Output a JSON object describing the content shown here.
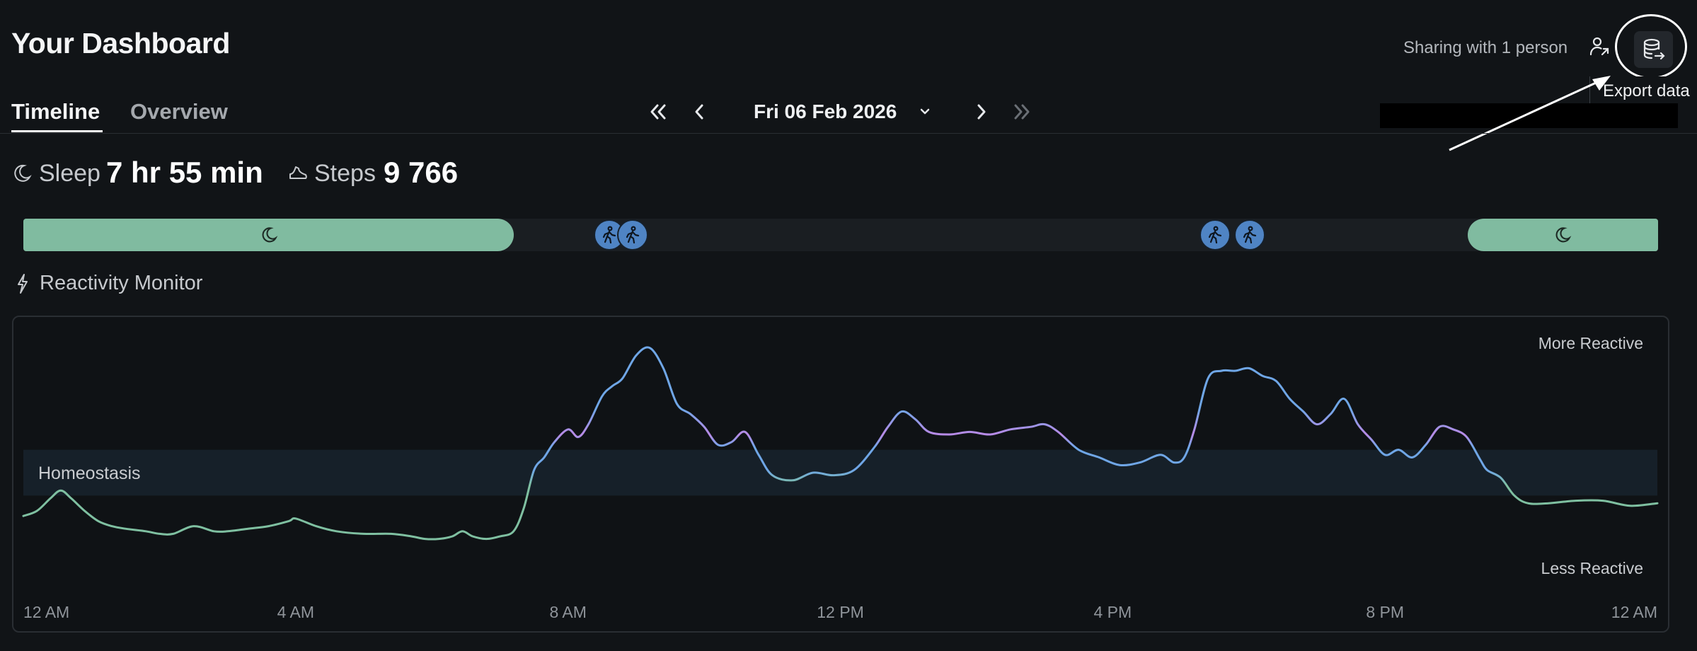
{
  "header": {
    "title": "Your Dashboard",
    "sharing_text": "Sharing with 1 person",
    "share_icon": "person-share-icon",
    "export_icon": "database-export-icon",
    "export_tooltip": "Export data"
  },
  "tabs": [
    {
      "label": "Timeline",
      "active": true
    },
    {
      "label": "Overview",
      "active": false
    }
  ],
  "date_nav": {
    "date": "Fri 06 Feb 2026",
    "first_icon": "double-chevron-left-icon",
    "prev_icon": "chevron-left-icon",
    "dropdown_icon": "chevron-down-icon",
    "next_icon": "chevron-right-icon",
    "last_icon": "double-chevron-right-icon"
  },
  "stats": {
    "sleep_label": "Sleep",
    "sleep_value": "7 hr 55 min",
    "steps_label": "Steps",
    "steps_value": "9 766"
  },
  "activity_track": {
    "sleep_color": "#80bba0",
    "walk_color": "#4f84c4",
    "sleep_periods": [
      {
        "start_hour": 0,
        "end_hour": 7.2
      },
      {
        "start_hour": 21.2,
        "end_hour": 24
      }
    ],
    "walk_events": [
      {
        "hour": 8.6
      },
      {
        "hour": 8.95
      },
      {
        "hour": 17.5
      },
      {
        "hour": 18.0
      }
    ]
  },
  "reactivity": {
    "section_title": "Reactivity Monitor",
    "section_icon": "lightning-icon",
    "band_label": "Homeostasis",
    "more_label": "More Reactive",
    "less_label": "Less Reactive"
  },
  "chart_data": {
    "type": "line",
    "title": "",
    "xlabel": "",
    "ylabel": "",
    "x_ticks": [
      "12 AM",
      "4 AM",
      "8 AM",
      "12 PM",
      "4 PM",
      "8 PM",
      "12 AM"
    ],
    "x_range": [
      0,
      24
    ],
    "y_range": [
      0,
      100
    ],
    "homeostasis_band": [
      36,
      54
    ],
    "colors": {
      "low": "#7fc0a1",
      "mid": "#6fa6e6",
      "high": "#b88ae6"
    },
    "series": [
      {
        "x": [
          0,
          0.2,
          0.4,
          0.55,
          0.7,
          0.9,
          1.1,
          1.3,
          1.5,
          1.8,
          2.0,
          2.2,
          2.5,
          2.8,
          3.0,
          3.3,
          3.6,
          3.9,
          4.0,
          4.3,
          4.6,
          5.0,
          5.4,
          5.7,
          5.9,
          6.1,
          6.3,
          6.45,
          6.6,
          6.8,
          7.0,
          7.2,
          7.35,
          7.5,
          7.65,
          7.8,
          8.0,
          8.15,
          8.3,
          8.5,
          8.65,
          8.8,
          9.0,
          9.2,
          9.4,
          9.6,
          9.8,
          10.0,
          10.2,
          10.4,
          10.6,
          10.8,
          11.0,
          11.3,
          11.6,
          11.9,
          12.2,
          12.5,
          12.7,
          12.9,
          13.1,
          13.3,
          13.6,
          13.9,
          14.2,
          14.5,
          14.8,
          15.0,
          15.2,
          15.5,
          15.8,
          16.1,
          16.4,
          16.7,
          16.9,
          17.05,
          17.2,
          17.4,
          17.6,
          17.8,
          18.0,
          18.2,
          18.4,
          18.6,
          18.8,
          19.0,
          19.2,
          19.4,
          19.6,
          19.8,
          20.0,
          20.2,
          20.4,
          20.6,
          20.8,
          21.0,
          21.2,
          21.4,
          21.5,
          21.7,
          21.9,
          22.1,
          22.4,
          22.8,
          23.2,
          23.6,
          24.0
        ],
        "y": [
          28,
          30,
          35,
          38,
          35,
          30,
          26,
          24,
          23,
          22,
          21,
          21,
          24,
          22,
          22,
          23,
          24,
          26,
          27,
          24,
          22,
          21,
          21,
          20,
          19,
          19,
          20,
          22,
          20,
          19,
          20,
          22,
          31,
          46,
          51,
          57,
          62,
          59,
          64,
          75,
          79,
          82,
          91,
          94,
          86,
          72,
          68,
          63,
          56,
          57,
          61,
          52,
          44,
          42,
          45,
          44,
          46,
          55,
          63,
          69,
          66,
          61,
          60,
          61,
          60,
          62,
          63,
          64,
          61,
          54,
          51,
          48,
          49,
          52,
          49,
          51,
          62,
          82,
          85,
          85,
          86,
          83,
          81,
          74,
          69,
          64,
          68,
          74,
          64,
          58,
          52,
          54,
          51,
          56,
          63,
          62,
          59,
          50,
          46,
          43,
          36,
          33,
          33,
          34,
          34,
          32,
          33
        ]
      }
    ]
  }
}
